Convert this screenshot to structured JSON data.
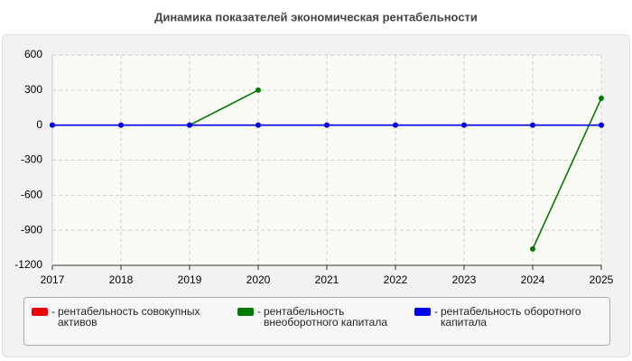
{
  "chart_data": {
    "type": "line",
    "title": "Динамика показателей экономическая рентабельности",
    "x": [
      2017,
      2018,
      2019,
      2020,
      2021,
      2022,
      2023,
      2024,
      2025
    ],
    "xlim": [
      2017,
      2025
    ],
    "xticks": [
      2017,
      2018,
      2019,
      2020,
      2021,
      2022,
      2023,
      2024,
      2025
    ],
    "ylim": [
      -1200,
      600
    ],
    "yticks": [
      -1200,
      -900,
      -600,
      -300,
      0,
      300,
      600
    ],
    "grid": true,
    "series": [
      {
        "name": "рентабельность совокупных активов",
        "color": "#ee0000",
        "values": [
          0,
          0,
          0,
          0,
          0,
          0,
          0,
          0,
          0
        ]
      },
      {
        "name": "рентабельность внеоборотного капитала",
        "color": "#007a00",
        "values": [
          null,
          null,
          0,
          300,
          null,
          null,
          null,
          -1060,
          230
        ]
      },
      {
        "name": "рентабельность оборотного капитала",
        "color": "#0000ee",
        "values": [
          0,
          0,
          0,
          0,
          0,
          0,
          0,
          0,
          0
        ]
      }
    ]
  }
}
